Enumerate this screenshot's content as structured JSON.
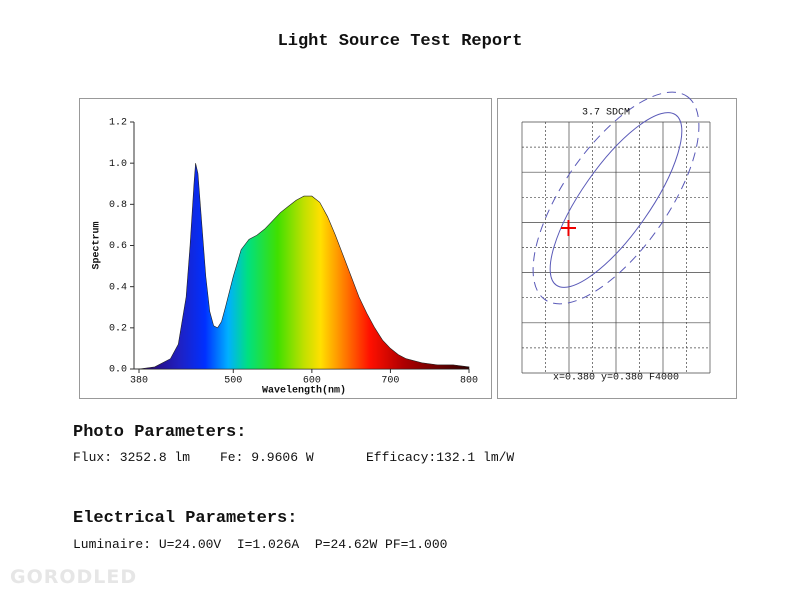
{
  "title": "Light Source Test Report",
  "chart_data": {
    "type": "area",
    "xlabel": "Wavelength(nm)",
    "ylabel": "Spectrum",
    "x": [
      380,
      400,
      420,
      430,
      440,
      445,
      450,
      452,
      455,
      460,
      465,
      470,
      475,
      480,
      485,
      490,
      500,
      510,
      520,
      530,
      540,
      550,
      560,
      570,
      580,
      590,
      600,
      610,
      620,
      630,
      640,
      650,
      660,
      670,
      680,
      690,
      700,
      710,
      720,
      740,
      760,
      780,
      800
    ],
    "values": [
      0,
      0.01,
      0.05,
      0.12,
      0.35,
      0.6,
      0.9,
      1.0,
      0.95,
      0.7,
      0.45,
      0.28,
      0.21,
      0.2,
      0.23,
      0.3,
      0.45,
      0.58,
      0.63,
      0.65,
      0.68,
      0.72,
      0.76,
      0.79,
      0.82,
      0.84,
      0.84,
      0.81,
      0.74,
      0.65,
      0.55,
      0.45,
      0.35,
      0.27,
      0.2,
      0.14,
      0.1,
      0.07,
      0.05,
      0.03,
      0.02,
      0.02,
      0.01
    ],
    "xlim": [
      380,
      800
    ],
    "ylim": [
      0,
      1.2
    ],
    "xticks": [
      380,
      500,
      600,
      700,
      800
    ],
    "yticks": [
      {
        "value": 0,
        "label": "0.0"
      },
      0.2,
      0.4,
      0.6,
      0.8,
      {
        "value": 1,
        "label": "1.0"
      },
      1.2
    ]
  },
  "sdcm": {
    "label": "3.7 SDCM",
    "coords": "x=0.380 y=0.380 F4000"
  },
  "photo": {
    "title": "Photo Parameters:",
    "flux": "Flux: 3252.8 lm",
    "fe": "Fe: 9.9606 W",
    "efficacy": "Efficacy:132.1 lm/W"
  },
  "electrical": {
    "title": "Electrical Parameters:",
    "line": "Luminaire: U=24.00V  I=1.026A  P=24.62W PF=1.000"
  },
  "watermark": "GORODLED"
}
